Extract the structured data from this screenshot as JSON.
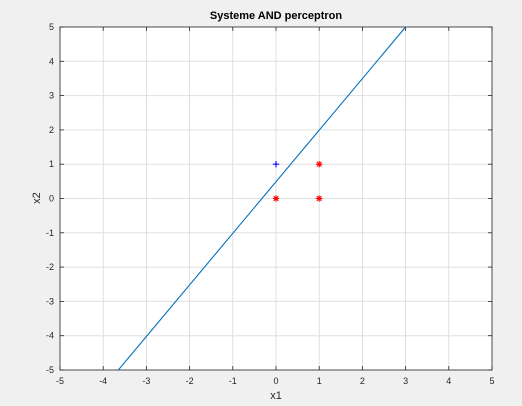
{
  "chart_data": {
    "type": "scatter",
    "title": "Systeme AND perceptron",
    "xlabel": "x1",
    "ylabel": "x2",
    "xlim": [
      -5,
      5
    ],
    "ylim": [
      -5,
      5
    ],
    "xticks": [
      -5,
      -4,
      -3,
      -2,
      -1,
      0,
      1,
      2,
      3,
      4,
      5
    ],
    "yticks": [
      -5,
      -4,
      -3,
      -2,
      -1,
      0,
      1,
      2,
      3,
      4,
      5
    ],
    "grid": true,
    "series": [
      {
        "marker": "plus",
        "color": "#0000ff",
        "points": [
          [
            0,
            1
          ]
        ]
      },
      {
        "marker": "asterisk",
        "color": "#ff0000",
        "points": [
          [
            0,
            0
          ],
          [
            1,
            0
          ],
          [
            1,
            1
          ]
        ]
      }
    ],
    "lines": [
      {
        "color": "#0072bd",
        "x": [
          -3.65,
          3.0
        ],
        "y": [
          -5,
          5
        ]
      }
    ]
  }
}
